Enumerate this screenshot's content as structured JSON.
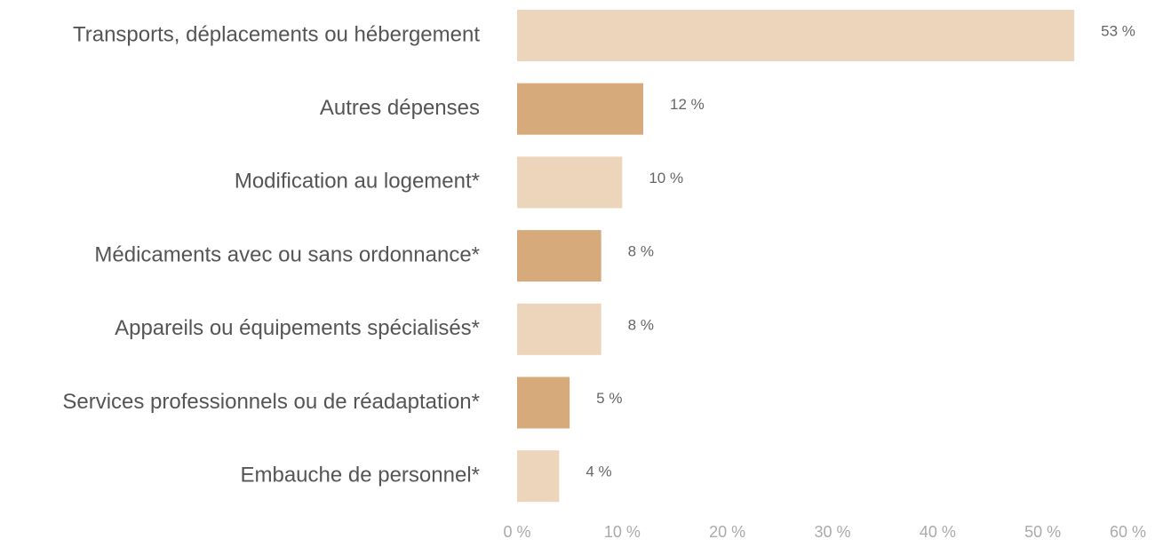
{
  "chart_data": {
    "type": "bar",
    "orientation": "horizontal",
    "categories": [
      "Transports, déplacements ou hébergement",
      "Autres dépenses",
      "Modification au logement*",
      "Médicaments avec ou sans ordonnance*",
      "Appareils ou équipements spécialisés*",
      "Services professionnels ou de réadaptation*",
      "Embauche de personnel*"
    ],
    "values": [
      53,
      12,
      10,
      8,
      8,
      5,
      4
    ],
    "value_labels": [
      "53 %",
      "12 %",
      "10 %",
      "8 %",
      "8 %",
      "5 %",
      "4 %"
    ],
    "colors": [
      "#ecd5bb",
      "#d6aa7a",
      "#ecd5bb",
      "#d6aa7a",
      "#ecd5bb",
      "#d6aa7a",
      "#ecd5bb"
    ],
    "xlim": [
      0,
      60
    ],
    "xticks": [
      {
        "value": 0,
        "label": "0 %"
      },
      {
        "value": 10,
        "label": "10 %"
      },
      {
        "value": 20,
        "label": "20 %"
      },
      {
        "value": 30,
        "label": "30 %"
      },
      {
        "value": 40,
        "label": "40 %"
      },
      {
        "value": 50,
        "label": "50 %"
      },
      {
        "value": 60,
        "label": "60 %"
      }
    ],
    "grid": false
  }
}
